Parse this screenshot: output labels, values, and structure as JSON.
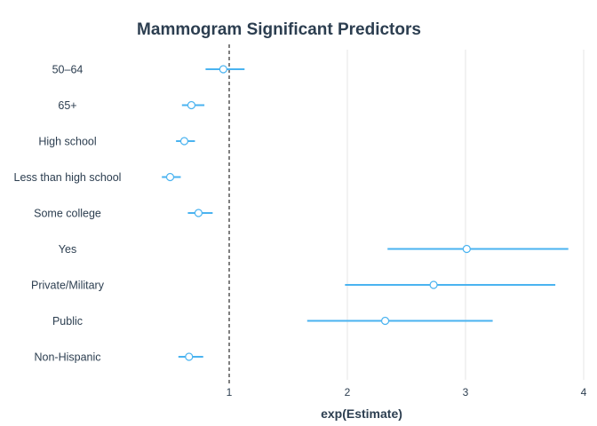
{
  "chart_data": {
    "type": "scatter",
    "title": "Mammogram Significant Predictors",
    "xlabel": "exp(Estimate)",
    "ylabel": "",
    "xlim": [
      0,
      4
    ],
    "x_ticks": [
      1,
      2,
      3,
      4
    ],
    "reference_line": 1,
    "grid": "vertical major",
    "legend": "none",
    "series": [
      {
        "points": [
          {
            "label": "50–64",
            "estimate": 0.95,
            "low": 0.8,
            "high": 1.13
          },
          {
            "label": "65+",
            "estimate": 0.68,
            "low": 0.6,
            "high": 0.79
          },
          {
            "label": "High school",
            "estimate": 0.62,
            "low": 0.55,
            "high": 0.71
          },
          {
            "label": "Less than high school",
            "estimate": 0.5,
            "low": 0.43,
            "high": 0.59
          },
          {
            "label": "Some college",
            "estimate": 0.74,
            "low": 0.65,
            "high": 0.86
          },
          {
            "label": "Yes",
            "estimate": 3.01,
            "low": 2.34,
            "high": 3.87
          },
          {
            "label": "Private/Military",
            "estimate": 2.73,
            "low": 1.98,
            "high": 3.76
          },
          {
            "label": "Public",
            "estimate": 2.32,
            "low": 1.66,
            "high": 3.23
          },
          {
            "label": "Non-Hispanic",
            "estimate": 0.66,
            "low": 0.57,
            "high": 0.78
          }
        ]
      }
    ]
  },
  "colors": {
    "accent": "#4ab3f0",
    "text": "#2c3e50",
    "grid": "#e6e6e6",
    "reference": "#000000"
  }
}
